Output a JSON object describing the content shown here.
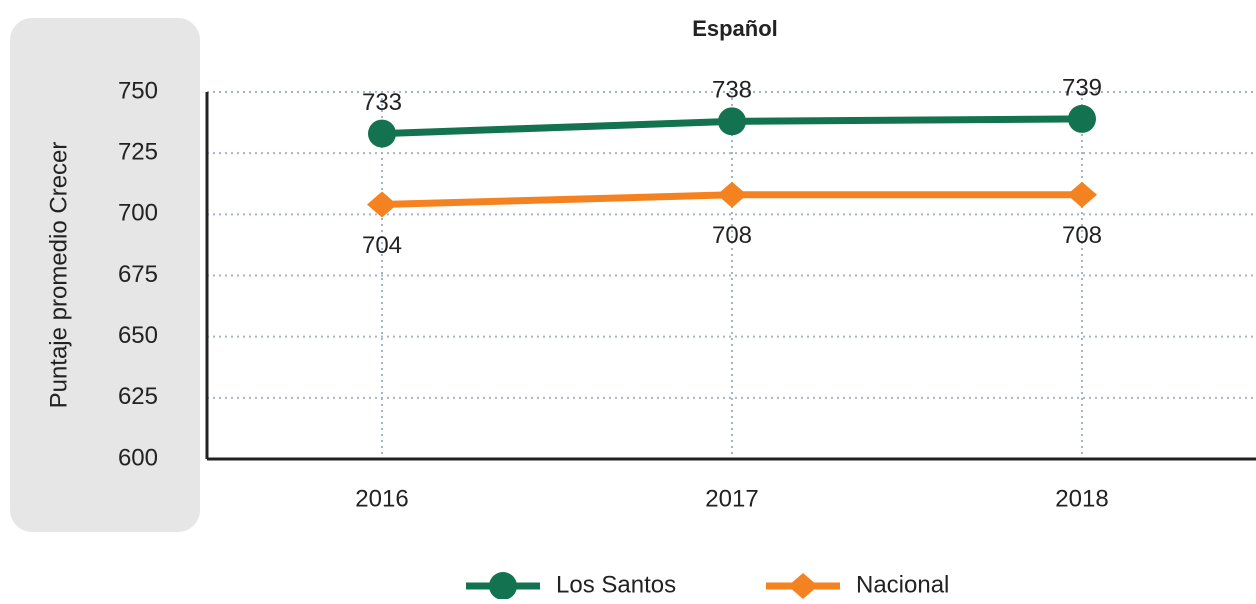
{
  "chart_data": {
    "type": "line",
    "title": "Español",
    "y_label": "Puntaje promedio Crecer",
    "categories": [
      "2016",
      "2017",
      "2018"
    ],
    "series": [
      {
        "name": "Los Santos",
        "color": "#137350",
        "marker": "circle",
        "values": [
          733,
          738,
          739
        ]
      },
      {
        "name": "Nacional",
        "color": "#f58220",
        "marker": "diamond",
        "values": [
          704,
          708,
          708
        ]
      }
    ],
    "ylim": [
      600,
      750
    ],
    "yticks": [
      600,
      625,
      650,
      675,
      700,
      725,
      750
    ],
    "grid": true
  }
}
